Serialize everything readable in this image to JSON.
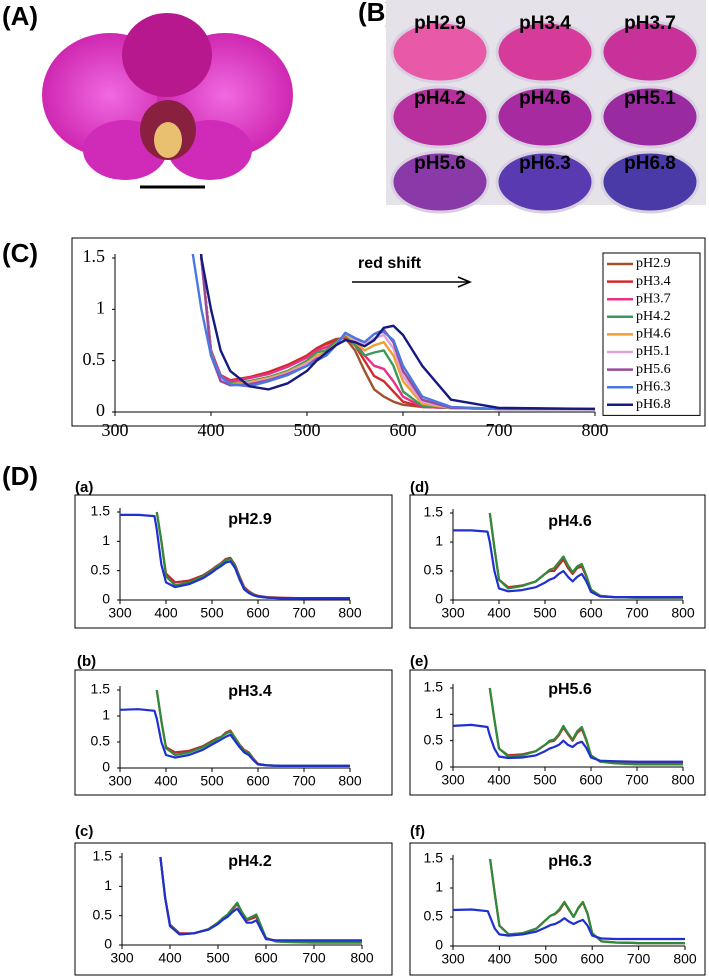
{
  "labels": {
    "a": "(A)",
    "b": "(B)",
    "d": "(D)"
  },
  "photo_b": {
    "wells": [
      "pH2.9",
      "pH3.4",
      "pH3.7",
      "pH4.2",
      "pH4.6",
      "pH5.1",
      "pH5.6",
      "pH6.3",
      "pH6.8"
    ]
  },
  "chart_data": [
    {
      "type": "line",
      "panel_label": "(C)",
      "annotation": "red shift",
      "x": [
        380,
        390,
        400,
        410,
        420,
        440,
        460,
        480,
        500,
        510,
        520,
        530,
        540,
        550,
        560,
        570,
        580,
        590,
        600,
        620,
        650,
        700,
        800
      ],
      "xlim": [
        300,
        800
      ],
      "xticks": [
        300,
        400,
        500,
        600,
        700,
        800
      ],
      "ylim": [
        0,
        1.5
      ],
      "yticks": [
        0,
        0.5,
        1,
        1.5
      ],
      "legend": "right",
      "series": [
        {
          "name": "pH2.9",
          "color": "#a0522d",
          "values": [
            3,
            1.5,
            0.6,
            0.35,
            0.3,
            0.33,
            0.38,
            0.45,
            0.55,
            0.62,
            0.67,
            0.71,
            0.72,
            0.6,
            0.4,
            0.22,
            0.15,
            0.1,
            0.07,
            0.05,
            0.04,
            0.03,
            0.03
          ]
        },
        {
          "name": "pH3.4",
          "color": "#d42a2a",
          "values": [
            3,
            1.5,
            0.6,
            0.36,
            0.31,
            0.34,
            0.39,
            0.46,
            0.55,
            0.62,
            0.66,
            0.7,
            0.73,
            0.65,
            0.5,
            0.35,
            0.3,
            0.2,
            0.1,
            0.05,
            0.04,
            0.03,
            0.03
          ]
        },
        {
          "name": "pH3.7",
          "color": "#e8308a",
          "values": [
            3,
            1.5,
            0.6,
            0.35,
            0.3,
            0.33,
            0.37,
            0.44,
            0.53,
            0.6,
            0.63,
            0.68,
            0.74,
            0.68,
            0.55,
            0.45,
            0.42,
            0.3,
            0.15,
            0.05,
            0.04,
            0.03,
            0.03
          ]
        },
        {
          "name": "pH4.2",
          "color": "#3a9a5a",
          "values": [
            3,
            1.5,
            0.58,
            0.33,
            0.28,
            0.3,
            0.34,
            0.4,
            0.5,
            0.58,
            0.6,
            0.68,
            0.75,
            0.65,
            0.55,
            0.58,
            0.6,
            0.45,
            0.2,
            0.06,
            0.04,
            0.03,
            0.03
          ]
        },
        {
          "name": "pH4.6",
          "color": "#f0a030",
          "values": [
            3,
            1.5,
            0.56,
            0.32,
            0.27,
            0.29,
            0.33,
            0.39,
            0.48,
            0.55,
            0.58,
            0.66,
            0.76,
            0.68,
            0.6,
            0.65,
            0.68,
            0.55,
            0.3,
            0.08,
            0.04,
            0.03,
            0.03
          ]
        },
        {
          "name": "pH5.1",
          "color": "#e0a0d8",
          "values": [
            3,
            1.5,
            0.55,
            0.31,
            0.26,
            0.28,
            0.32,
            0.38,
            0.47,
            0.53,
            0.56,
            0.65,
            0.77,
            0.7,
            0.65,
            0.72,
            0.75,
            0.62,
            0.35,
            0.1,
            0.04,
            0.03,
            0.03
          ]
        },
        {
          "name": "pH5.6",
          "color": "#9a4a9a",
          "values": [
            3,
            1.5,
            0.55,
            0.3,
            0.26,
            0.27,
            0.31,
            0.37,
            0.45,
            0.52,
            0.55,
            0.65,
            0.77,
            0.72,
            0.68,
            0.76,
            0.8,
            0.68,
            0.4,
            0.12,
            0.04,
            0.03,
            0.03
          ]
        },
        {
          "name": "pH6.3",
          "color": "#4a78e0",
          "values": [
            1.6,
            1.0,
            0.55,
            0.35,
            0.27,
            0.25,
            0.3,
            0.36,
            0.45,
            0.5,
            0.55,
            0.65,
            0.77,
            0.72,
            0.68,
            0.76,
            0.78,
            0.7,
            0.45,
            0.15,
            0.05,
            0.03,
            0.03
          ]
        },
        {
          "name": "pH6.8",
          "color": "#141a80",
          "values": [
            3,
            1.5,
            1.0,
            0.6,
            0.4,
            0.25,
            0.22,
            0.28,
            0.4,
            0.5,
            0.58,
            0.65,
            0.7,
            0.68,
            0.64,
            0.7,
            0.82,
            0.84,
            0.75,
            0.45,
            0.12,
            0.04,
            0.03
          ]
        }
      ]
    },
    {
      "type": "line",
      "panel_label": "(a)",
      "title": "pH2.9",
      "x": [
        300,
        340,
        375,
        380,
        390,
        400,
        420,
        450,
        480,
        500,
        510,
        520,
        530,
        540,
        550,
        560,
        570,
        580,
        590,
        600,
        620,
        650,
        700,
        800
      ],
      "xlim": [
        300,
        800
      ],
      "xticks": [
        300,
        400,
        500,
        600,
        700,
        800
      ],
      "ylim": [
        0,
        1.5
      ],
      "yticks": [
        0,
        0.5,
        1,
        1.5
      ],
      "series": [
        {
          "color": "#c0282d",
          "values": [
            null,
            null,
            null,
            1.5,
            1.0,
            0.45,
            0.3,
            0.33,
            0.42,
            0.52,
            0.58,
            0.63,
            0.7,
            0.72,
            0.6,
            0.4,
            0.22,
            0.15,
            0.1,
            0.07,
            0.05,
            0.04,
            0.03,
            0.03
          ]
        },
        {
          "color": "#2e8b3a",
          "values": [
            null,
            null,
            null,
            1.5,
            1.0,
            0.4,
            0.25,
            0.3,
            0.4,
            0.5,
            0.56,
            0.62,
            0.68,
            0.7,
            0.58,
            0.38,
            0.2,
            0.13,
            0.09,
            0.06,
            0.04,
            0.03,
            0.03,
            0.03
          ]
        },
        {
          "color": "#1f2fd0",
          "values": [
            1.45,
            1.45,
            1.43,
            1.2,
            0.6,
            0.3,
            0.22,
            0.27,
            0.37,
            0.47,
            0.53,
            0.58,
            0.64,
            0.66,
            0.55,
            0.35,
            0.18,
            0.12,
            0.08,
            0.06,
            0.04,
            0.03,
            0.03,
            0.03
          ]
        }
      ]
    },
    {
      "type": "line",
      "panel_label": "(d)",
      "title": "pH4.6",
      "x": [
        300,
        340,
        375,
        380,
        390,
        400,
        420,
        450,
        480,
        500,
        510,
        520,
        530,
        540,
        550,
        560,
        570,
        580,
        590,
        600,
        620,
        650,
        700,
        800
      ],
      "xlim": [
        300,
        800
      ],
      "xticks": [
        300,
        400,
        500,
        600,
        700,
        800
      ],
      "ylim": [
        0,
        1.5
      ],
      "yticks": [
        0,
        0.5,
        1,
        1.5
      ],
      "series": [
        {
          "color": "#c0282d",
          "values": [
            null,
            null,
            null,
            1.5,
            0.9,
            0.35,
            0.22,
            0.25,
            0.32,
            0.45,
            0.5,
            0.5,
            0.6,
            0.7,
            0.55,
            0.45,
            0.55,
            0.58,
            0.4,
            0.18,
            0.07,
            0.05,
            0.04,
            0.04
          ]
        },
        {
          "color": "#2e8b3a",
          "values": [
            null,
            null,
            null,
            1.5,
            0.9,
            0.35,
            0.2,
            0.24,
            0.32,
            0.45,
            0.52,
            0.55,
            0.65,
            0.75,
            0.6,
            0.48,
            0.58,
            0.62,
            0.42,
            0.18,
            0.07,
            0.05,
            0.04,
            0.04
          ]
        },
        {
          "color": "#1f2fd0",
          "values": [
            1.2,
            1.2,
            1.18,
            1.0,
            0.5,
            0.2,
            0.15,
            0.17,
            0.22,
            0.3,
            0.35,
            0.38,
            0.45,
            0.5,
            0.4,
            0.32,
            0.4,
            0.45,
            0.32,
            0.14,
            0.06,
            0.05,
            0.05,
            0.05
          ]
        }
      ]
    },
    {
      "type": "line",
      "panel_label": "(b)",
      "title": "pH3.4",
      "x": [
        300,
        340,
        375,
        380,
        390,
        400,
        420,
        450,
        480,
        500,
        510,
        520,
        530,
        540,
        550,
        560,
        570,
        580,
        590,
        600,
        620,
        650,
        700,
        800
      ],
      "xlim": [
        300,
        800
      ],
      "xticks": [
        300,
        400,
        500,
        600,
        700,
        800
      ],
      "ylim": [
        0,
        1.5
      ],
      "yticks": [
        0,
        0.5,
        1,
        1.5
      ],
      "series": [
        {
          "color": "#c0282d",
          "values": [
            null,
            null,
            null,
            1.5,
            0.9,
            0.4,
            0.3,
            0.33,
            0.42,
            0.52,
            0.57,
            0.6,
            0.68,
            0.72,
            0.58,
            0.45,
            0.35,
            0.3,
            0.18,
            0.08,
            0.05,
            0.04,
            0.04,
            0.04
          ]
        },
        {
          "color": "#2e8b3a",
          "values": [
            null,
            null,
            null,
            1.5,
            0.9,
            0.38,
            0.25,
            0.3,
            0.4,
            0.5,
            0.55,
            0.6,
            0.66,
            0.7,
            0.58,
            0.44,
            0.33,
            0.28,
            0.17,
            0.07,
            0.05,
            0.04,
            0.04,
            0.04
          ]
        },
        {
          "color": "#1f2fd0",
          "values": [
            1.12,
            1.13,
            1.1,
            0.95,
            0.5,
            0.25,
            0.2,
            0.25,
            0.35,
            0.45,
            0.5,
            0.55,
            0.6,
            0.64,
            0.52,
            0.4,
            0.3,
            0.25,
            0.15,
            0.07,
            0.05,
            0.04,
            0.04,
            0.04
          ]
        }
      ]
    },
    {
      "type": "line",
      "panel_label": "(e)",
      "title": "pH5.6",
      "x": [
        300,
        340,
        375,
        380,
        390,
        400,
        420,
        450,
        480,
        500,
        510,
        520,
        530,
        540,
        550,
        560,
        570,
        580,
        590,
        600,
        620,
        650,
        700,
        800
      ],
      "xlim": [
        300,
        800
      ],
      "xticks": [
        300,
        400,
        500,
        600,
        700,
        800
      ],
      "ylim": [
        0,
        1.5
      ],
      "yticks": [
        0,
        0.5,
        1,
        1.5
      ],
      "series": [
        {
          "color": "#c0282d",
          "values": [
            null,
            null,
            null,
            1.5,
            0.9,
            0.35,
            0.22,
            0.24,
            0.3,
            0.42,
            0.48,
            0.5,
            0.6,
            0.75,
            0.62,
            0.5,
            0.65,
            0.72,
            0.5,
            0.22,
            0.1,
            0.08,
            0.07,
            0.07
          ]
        },
        {
          "color": "#2e8b3a",
          "values": [
            null,
            null,
            null,
            1.5,
            0.9,
            0.35,
            0.2,
            0.22,
            0.3,
            0.42,
            0.5,
            0.52,
            0.62,
            0.78,
            0.64,
            0.52,
            0.68,
            0.76,
            0.52,
            0.22,
            0.1,
            0.07,
            0.05,
            0.05
          ]
        },
        {
          "color": "#1f2fd0",
          "values": [
            0.78,
            0.8,
            0.76,
            0.6,
            0.35,
            0.2,
            0.17,
            0.18,
            0.22,
            0.3,
            0.35,
            0.38,
            0.42,
            0.5,
            0.42,
            0.38,
            0.45,
            0.48,
            0.36,
            0.18,
            0.12,
            0.11,
            0.1,
            0.1
          ]
        }
      ]
    },
    {
      "type": "line",
      "panel_label": "(c)",
      "title": "pH4.2",
      "x": [
        300,
        340,
        375,
        380,
        390,
        400,
        420,
        450,
        480,
        500,
        510,
        520,
        530,
        540,
        550,
        560,
        570,
        580,
        590,
        600,
        620,
        650,
        700,
        800
      ],
      "xlim": [
        300,
        800
      ],
      "xticks": [
        300,
        400,
        500,
        600,
        700,
        800
      ],
      "ylim": [
        0,
        1.5
      ],
      "yticks": [
        0,
        0.5,
        1,
        1.5
      ],
      "series": [
        {
          "color": "#c0282d",
          "values": [
            null,
            null,
            null,
            1.5,
            0.8,
            0.35,
            0.2,
            0.2,
            0.27,
            0.38,
            0.45,
            0.5,
            0.6,
            0.7,
            0.55,
            0.42,
            0.45,
            0.48,
            0.3,
            0.12,
            0.07,
            0.06,
            0.05,
            0.05
          ]
        },
        {
          "color": "#2e8b3a",
          "values": [
            null,
            null,
            null,
            1.5,
            0.8,
            0.33,
            0.18,
            0.2,
            0.27,
            0.38,
            0.46,
            0.52,
            0.62,
            0.72,
            0.56,
            0.44,
            0.48,
            0.52,
            0.32,
            0.12,
            0.06,
            0.05,
            0.04,
            0.04
          ]
        },
        {
          "color": "#1f2fd0",
          "values": [
            null,
            null,
            null,
            1.5,
            0.8,
            0.32,
            0.18,
            0.2,
            0.26,
            0.36,
            0.43,
            0.48,
            0.56,
            0.62,
            0.5,
            0.38,
            0.38,
            0.42,
            0.26,
            0.1,
            0.08,
            0.08,
            0.08,
            0.08
          ]
        }
      ]
    },
    {
      "type": "line",
      "panel_label": "(f)",
      "title": "pH6.3",
      "x": [
        300,
        340,
        375,
        380,
        390,
        400,
        420,
        450,
        480,
        500,
        510,
        520,
        530,
        540,
        550,
        560,
        570,
        580,
        590,
        600,
        620,
        650,
        700,
        800
      ],
      "xlim": [
        300,
        800
      ],
      "xticks": [
        300,
        400,
        500,
        600,
        700,
        800
      ],
      "ylim": [
        0,
        1.5
      ],
      "yticks": [
        0,
        0.5,
        1,
        1.5
      ],
      "series": [
        {
          "color": "#c0282d",
          "values": [
            null,
            null,
            null,
            1.5,
            0.9,
            0.35,
            0.2,
            0.22,
            0.3,
            0.45,
            0.52,
            0.55,
            0.62,
            0.75,
            0.62,
            0.5,
            0.65,
            0.75,
            0.55,
            0.22,
            0.08,
            0.06,
            0.05,
            0.05
          ]
        },
        {
          "color": "#2e8b3a",
          "values": [
            null,
            null,
            null,
            1.5,
            0.9,
            0.35,
            0.2,
            0.22,
            0.3,
            0.45,
            0.52,
            0.56,
            0.64,
            0.76,
            0.63,
            0.5,
            0.66,
            0.76,
            0.56,
            0.22,
            0.08,
            0.06,
            0.05,
            0.05
          ]
        },
        {
          "color": "#1f2fd0",
          "values": [
            0.62,
            0.63,
            0.6,
            0.5,
            0.3,
            0.2,
            0.18,
            0.2,
            0.25,
            0.32,
            0.36,
            0.38,
            0.42,
            0.48,
            0.42,
            0.38,
            0.42,
            0.45,
            0.35,
            0.18,
            0.13,
            0.12,
            0.12,
            0.12
          ]
        }
      ]
    }
  ]
}
